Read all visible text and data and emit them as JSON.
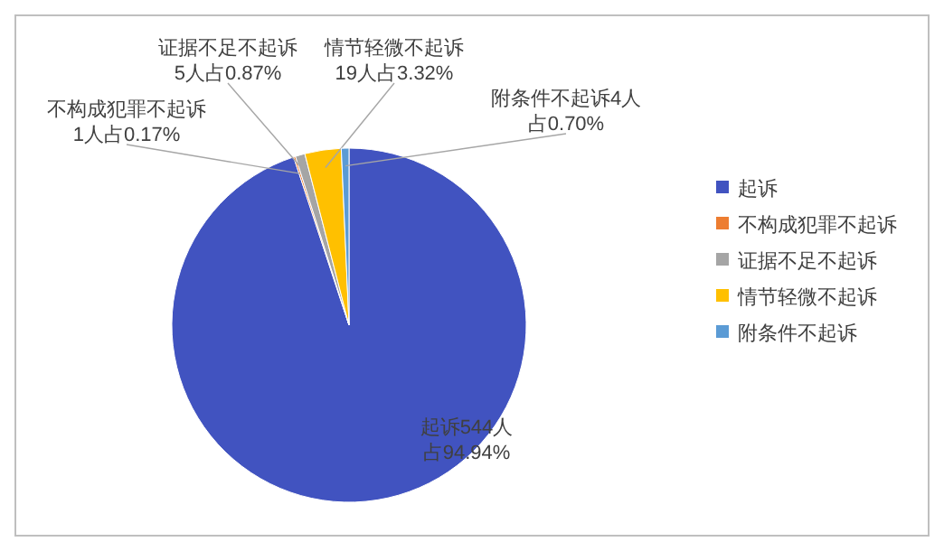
{
  "chart_data": {
    "type": "pie",
    "categories": [
      "起诉",
      "不构成犯罪不起诉",
      "证据不足不起诉",
      "情节轻微不起诉",
      "附条件不起诉"
    ],
    "values": [
      544,
      1,
      5,
      19,
      4
    ],
    "colors": [
      "#4153c0",
      "#ed7d31",
      "#a5a5a5",
      "#ffc000",
      "#5b9bd5"
    ],
    "value_labels": [
      "起诉544人占94.94%",
      "不构成犯罪不起诉1人占0.17%",
      "证据不足不起诉5人占0.87%",
      "情节轻微不起诉19人占3.32%",
      "附条件不起诉4人占0.70%"
    ],
    "legend": "right"
  }
}
